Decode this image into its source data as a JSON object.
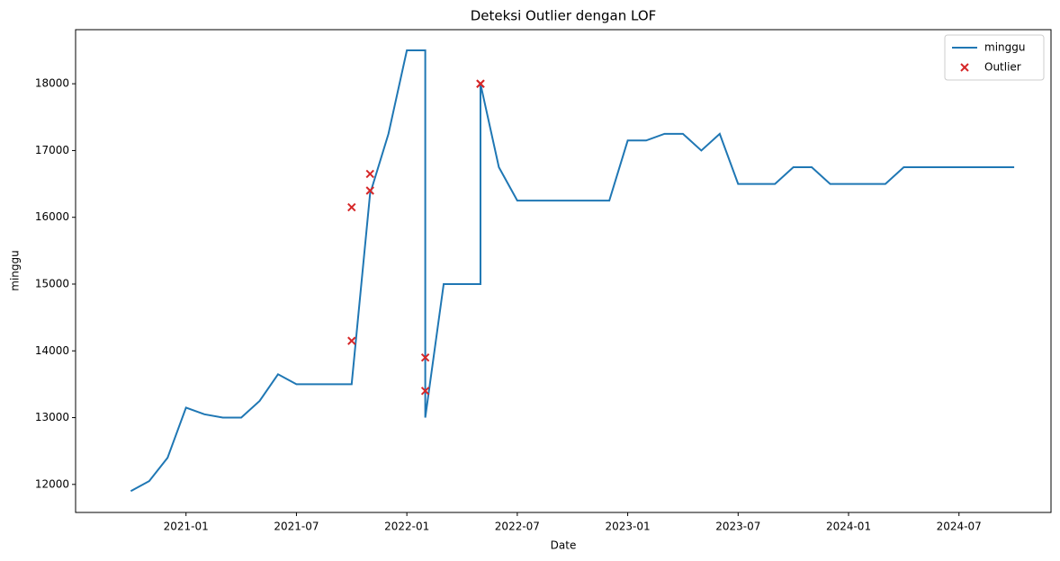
{
  "chart_data": {
    "type": "line",
    "title": "Deteksi Outlier dengan LOF",
    "xlabel": "Date",
    "ylabel": "minggu",
    "x": [
      "2020-10",
      "2020-11",
      "2020-12",
      "2021-01",
      "2021-02",
      "2021-03",
      "2021-04",
      "2021-05",
      "2021-06",
      "2021-07",
      "2021-08",
      "2021-09",
      "2021-10",
      "2021-11",
      "2021-12",
      "2022-01",
      "2022-02",
      "2022-02",
      "2022-03",
      "2022-04",
      "2022-05",
      "2022-05",
      "2022-06",
      "2022-07",
      "2022-08",
      "2022-09",
      "2022-10",
      "2022-11",
      "2022-12",
      "2023-01",
      "2023-02",
      "2023-03",
      "2023-04",
      "2023-05",
      "2023-06",
      "2023-07",
      "2023-08",
      "2023-09",
      "2023-10",
      "2023-11",
      "2023-12",
      "2024-01",
      "2024-02",
      "2024-03",
      "2024-04",
      "2024-05",
      "2024-06",
      "2024-07",
      "2024-08",
      "2024-09",
      "2024-10"
    ],
    "series": [
      {
        "name": "minggu",
        "color": "#1f77b4",
        "values": [
          11900,
          12050,
          12400,
          13150,
          13050,
          13000,
          13000,
          13250,
          13650,
          13500,
          13500,
          13500,
          13500,
          16350,
          17250,
          18500,
          18500,
          13000,
          15000,
          15000,
          15000,
          18000,
          16750,
          16250,
          16250,
          16250,
          16250,
          16250,
          16250,
          17150,
          17150,
          17250,
          17250,
          17000,
          17250,
          16500,
          16500,
          16500,
          16750,
          16750,
          16500,
          16500,
          16500,
          16500,
          16750,
          16750,
          16750,
          16750,
          16750,
          16750,
          16750
        ]
      }
    ],
    "outliers": {
      "name": "Outlier",
      "color": "#d62728",
      "x": [
        "2021-10",
        "2021-10",
        "2021-11",
        "2021-11",
        "2022-02",
        "2022-02",
        "2022-05",
        "2022-05",
        "2022-05"
      ],
      "values": [
        14150,
        16150,
        16400,
        16650,
        13400,
        13900,
        18000,
        18000,
        18000
      ]
    },
    "xlim": [
      "2020-07",
      "2024-12"
    ],
    "xticks": [
      "2021-01",
      "2021-07",
      "2022-01",
      "2022-07",
      "2023-01",
      "2023-07",
      "2024-01",
      "2024-07"
    ],
    "ylim": [
      11580,
      18810
    ],
    "yticks": [
      12000,
      13000,
      14000,
      15000,
      16000,
      17000,
      18000
    ],
    "legend": "upper right"
  }
}
